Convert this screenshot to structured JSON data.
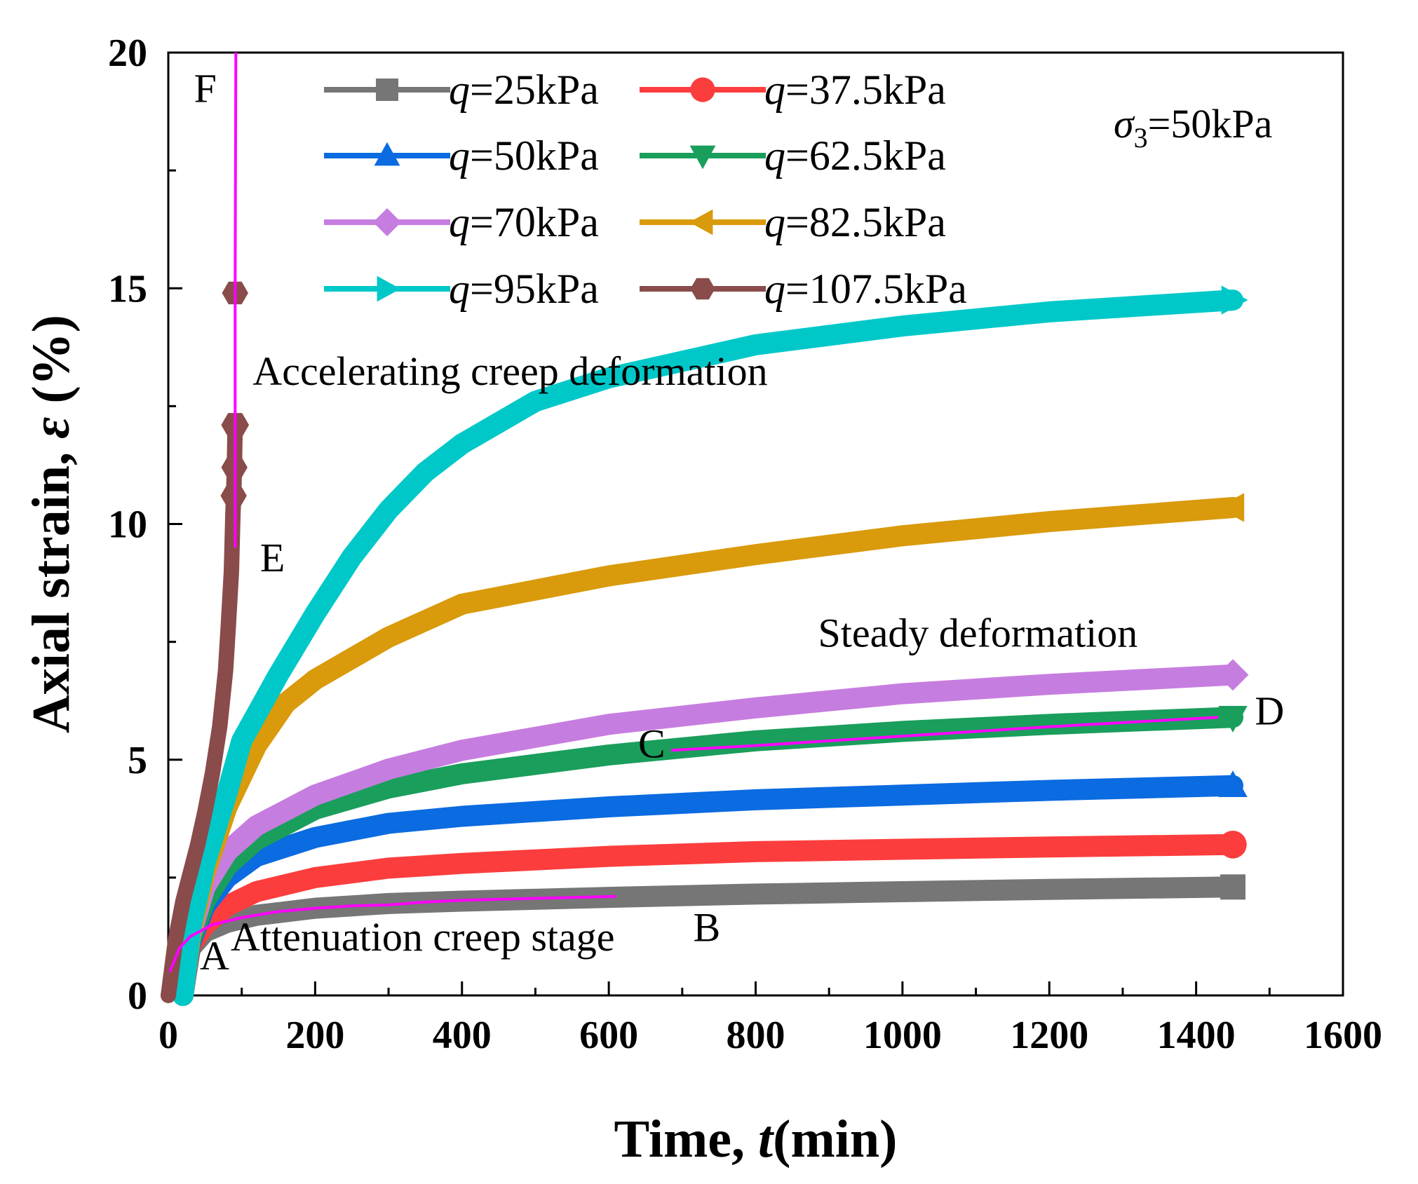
{
  "chart_data": {
    "type": "line",
    "xlabel": {
      "main": "Time, ",
      "var": "t",
      "unit": "(min)"
    },
    "ylabel": {
      "main": "Axial strain, ",
      "var": "ε",
      "unit": " (%)"
    },
    "xlim": [
      0,
      1600
    ],
    "ylim": [
      0,
      20
    ],
    "xticks": [
      0,
      200,
      400,
      600,
      800,
      1000,
      1200,
      1400,
      1600
    ],
    "yticks": [
      0,
      5,
      10,
      15,
      20
    ],
    "condition": {
      "symbol": "σ",
      "sub": "3",
      "text": "=50kPa"
    },
    "series": [
      {
        "name": "q=25kPa",
        "q_label": "q",
        "value_label": "=25kPa",
        "color": "#767676",
        "marker": "square",
        "x": [
          20,
          30,
          50,
          80,
          120,
          200,
          300,
          400,
          600,
          800,
          1000,
          1200,
          1450
        ],
        "y": [
          0.0,
          1.0,
          1.35,
          1.55,
          1.7,
          1.85,
          1.95,
          2.0,
          2.08,
          2.15,
          2.2,
          2.25,
          2.3
        ]
      },
      {
        "name": "q=37.5kPa",
        "q_label": "q",
        "value_label": "=37.5kPa",
        "color": "#fc3d3d",
        "marker": "circle",
        "x": [
          20,
          30,
          50,
          80,
          120,
          200,
          300,
          400,
          600,
          800,
          1000,
          1200,
          1450
        ],
        "y": [
          0.0,
          1.05,
          1.5,
          1.9,
          2.2,
          2.5,
          2.7,
          2.8,
          2.95,
          3.05,
          3.1,
          3.15,
          3.2
        ]
      },
      {
        "name": "q=50kPa",
        "q_label": "q",
        "value_label": "=50kPa",
        "color": "#0b6be0",
        "marker": "triangle-up",
        "x": [
          20,
          30,
          50,
          80,
          120,
          200,
          300,
          400,
          600,
          800,
          1000,
          1200,
          1450
        ],
        "y": [
          0.0,
          1.1,
          1.9,
          2.5,
          2.95,
          3.35,
          3.65,
          3.8,
          4.0,
          4.15,
          4.25,
          4.35,
          4.45
        ]
      },
      {
        "name": "q=62.5kPa",
        "q_label": "q",
        "value_label": "=62.5kPa",
        "color": "#1a9e5c",
        "marker": "triangle-down",
        "x": [
          20,
          30,
          50,
          80,
          120,
          200,
          300,
          400,
          600,
          800,
          1000,
          1200,
          1450
        ],
        "y": [
          0.0,
          1.15,
          2.0,
          2.75,
          3.3,
          3.95,
          4.4,
          4.7,
          5.1,
          5.4,
          5.6,
          5.75,
          5.9
        ]
      },
      {
        "name": "q=70kPa",
        "q_label": "q",
        "value_label": "=70kPa",
        "color": "#c67de0",
        "marker": "diamond",
        "x": [
          20,
          30,
          50,
          80,
          120,
          200,
          300,
          400,
          600,
          800,
          1000,
          1200,
          1450
        ],
        "y": [
          0.0,
          1.25,
          2.3,
          3.05,
          3.6,
          4.25,
          4.8,
          5.2,
          5.75,
          6.1,
          6.4,
          6.6,
          6.8
        ]
      },
      {
        "name": "q=82.5kPa",
        "q_label": "q",
        "value_label": "=82.5kPa",
        "color": "#d99a0b",
        "marker": "triangle-left",
        "x": [
          20,
          30,
          50,
          80,
          120,
          160,
          200,
          300,
          400,
          600,
          800,
          1000,
          1200,
          1450
        ],
        "y": [
          0.0,
          1.3,
          2.6,
          4.0,
          5.3,
          6.2,
          6.7,
          7.6,
          8.3,
          8.9,
          9.35,
          9.75,
          10.05,
          10.35
        ]
      },
      {
        "name": "q=95kPa",
        "q_label": "q",
        "value_label": "=95kPa",
        "color": "#00c8c8",
        "marker": "triangle-right",
        "x": [
          20,
          30,
          50,
          80,
          100,
          150,
          200,
          250,
          300,
          350,
          400,
          500,
          600,
          800,
          1000,
          1200,
          1450
        ],
        "y": [
          0.0,
          1.4,
          2.8,
          4.3,
          5.4,
          6.8,
          8.1,
          9.3,
          10.3,
          11.1,
          11.7,
          12.6,
          13.1,
          13.8,
          14.2,
          14.5,
          14.75
        ]
      },
      {
        "name": "q=107.5kPa",
        "q_label": "q",
        "value_label": "=107.5kPa",
        "color": "#8a4b4b",
        "marker": "hexagon",
        "x": [
          0,
          10,
          20,
          30,
          40,
          50,
          60,
          70,
          78,
          82,
          86,
          88,
          89,
          90,
          91
        ],
        "y": [
          0.0,
          1.2,
          2.0,
          2.6,
          3.2,
          3.9,
          4.7,
          5.7,
          6.9,
          7.9,
          9.0,
          10.2,
          10.6,
          11.2,
          12.1
        ]
      }
    ],
    "extra_markers": [
      {
        "series": "q=107.5kPa",
        "x": [
          89,
          90,
          90,
          91
        ],
        "y": [
          10.6,
          11.2,
          12.1,
          14.9
        ]
      }
    ],
    "guide_lines": [
      {
        "name": "attenuation-guide",
        "color": "#ff00ff",
        "x": [
          2,
          15,
          30,
          60,
          100,
          150,
          200,
          250,
          300,
          350,
          400,
          500,
          610
        ],
        "y": [
          0.5,
          1.0,
          1.25,
          1.5,
          1.65,
          1.78,
          1.85,
          1.9,
          1.92,
          1.98,
          2.02,
          2.06,
          2.1
        ]
      },
      {
        "name": "steady-guide",
        "color": "#ff00ff",
        "x": [
          685,
          800,
          1000,
          1200,
          1430
        ],
        "y": [
          5.2,
          5.3,
          5.5,
          5.7,
          5.9
        ]
      },
      {
        "name": "accelerating-guide",
        "color": "#ff00ff",
        "x": [
          91,
          91,
          92
        ],
        "y": [
          9.5,
          15.0,
          20.0
        ]
      }
    ],
    "annotations": [
      {
        "name": "label-A",
        "text": "A",
        "x": 43,
        "y": 0.55
      },
      {
        "name": "label-B",
        "text": "B",
        "x": 715,
        "y": 1.15
      },
      {
        "name": "label-C",
        "text": "C",
        "x": 640,
        "y": 5.05
      },
      {
        "name": "label-D",
        "text": "D",
        "x": 1480,
        "y": 5.75
      },
      {
        "name": "label-E",
        "text": "E",
        "x": 125,
        "y": 9.0
      },
      {
        "name": "label-F",
        "text": "F",
        "x": 35,
        "y": 18.95
      },
      {
        "name": "label-attenuation",
        "text": "Attenuation creep stage",
        "x": 85,
        "y": 0.95
      },
      {
        "name": "label-steady",
        "text": "Steady deformation",
        "x": 885,
        "y": 7.4
      },
      {
        "name": "label-accelerating",
        "text": "Accelerating creep deformation",
        "x": 115,
        "y": 12.95
      }
    ]
  }
}
